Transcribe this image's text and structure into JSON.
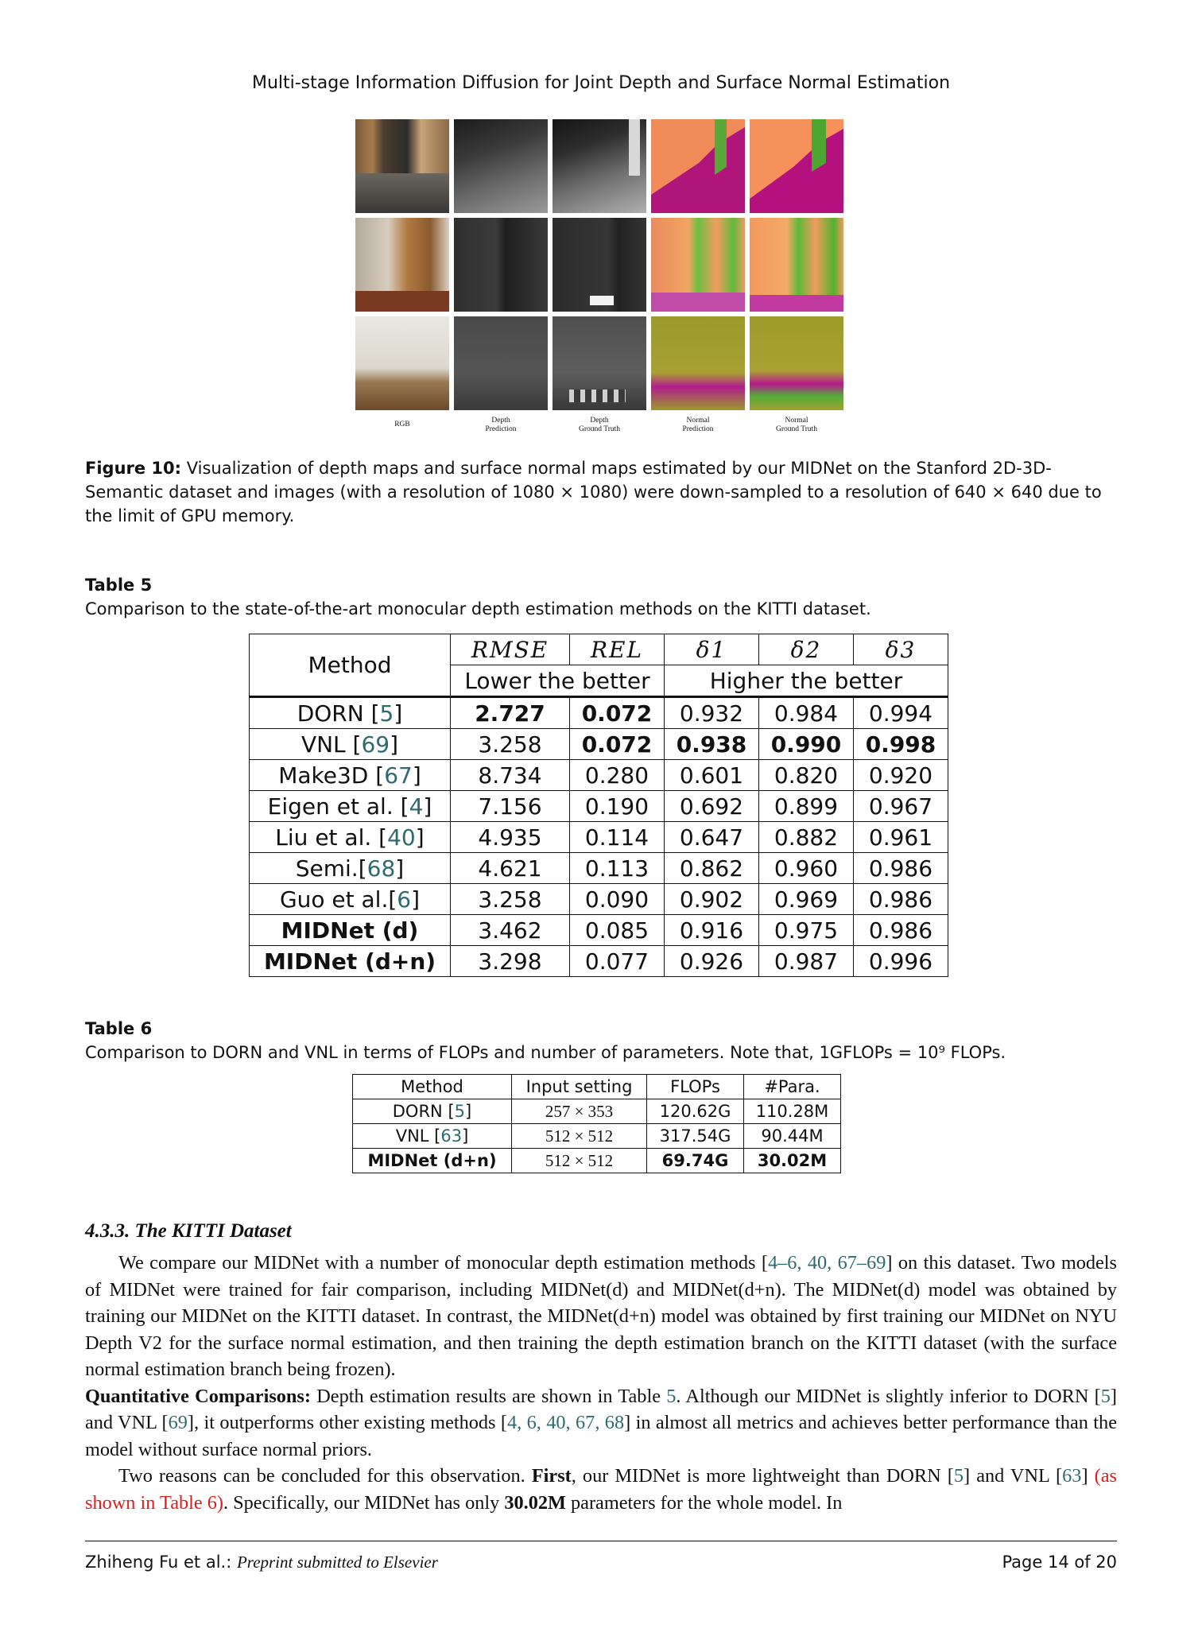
{
  "running_head": "Multi-stage Information Diffusion for Joint Depth and Surface Normal Estimation",
  "figure10": {
    "column_labels": [
      "RGB",
      "Depth\nPrediction",
      "Depth\nGround Truth",
      "Normal\nPrediction",
      "Normal\nGround Truth"
    ],
    "caption_label": "Figure 10:",
    "caption_text": "Visualization of depth maps and surface normal maps estimated by our MIDNet on the Stanford 2D-3D-Semantic dataset and images (with a resolution of 1080 × 1080) were down-sampled to a resolution of 640 × 640 due to the limit of GPU memory."
  },
  "table5": {
    "title": "Table 5",
    "caption": "Comparison to the state-of-the-art monocular depth estimation methods on the KITTI dataset.",
    "header": {
      "method": "Method",
      "rmse": "RMSE",
      "rel": "REL",
      "d1": "δ1",
      "d2": "δ2",
      "d3": "δ3",
      "lower": "Lower the better",
      "higher": "Higher the better"
    },
    "rows": [
      {
        "method": "DORN",
        "ref": "5",
        "sep": " ",
        "rmse": "2.727",
        "rel": "0.072",
        "d1": "0.932",
        "d2": "0.984",
        "d3": "0.994"
      },
      {
        "method": "VNL",
        "ref": "69",
        "sep": " ",
        "rmse": "3.258",
        "rel": "0.072",
        "d1": "0.938",
        "d2": "0.990",
        "d3": "0.998"
      },
      {
        "method": "Make3D",
        "ref": "67",
        "sep": " ",
        "rmse": "8.734",
        "rel": "0.280",
        "d1": "0.601",
        "d2": "0.820",
        "d3": "0.920"
      },
      {
        "method": "Eigen et al.",
        "ref": "4",
        "sep": " ",
        "rmse": "7.156",
        "rel": "0.190",
        "d1": "0.692",
        "d2": "0.899",
        "d3": "0.967"
      },
      {
        "method": "Liu et al.",
        "ref": "40",
        "sep": " ",
        "rmse": "4.935",
        "rel": "0.114",
        "d1": "0.647",
        "d2": "0.882",
        "d3": "0.961"
      },
      {
        "method": "Semi.",
        "ref": "68",
        "sep": "",
        "rmse": "4.621",
        "rel": "0.113",
        "d1": "0.862",
        "d2": "0.960",
        "d3": "0.986"
      },
      {
        "method": "Guo et al.",
        "ref": "6",
        "sep": "",
        "rmse": "3.258",
        "rel": "0.090",
        "d1": "0.902",
        "d2": "0.969",
        "d3": "0.986"
      },
      {
        "method": "MIDNet (d)",
        "ref": "",
        "sep": "",
        "rmse": "3.462",
        "rel": "0.085",
        "d1": "0.916",
        "d2": "0.975",
        "d3": "0.986"
      },
      {
        "method": "MIDNet (d+n)",
        "ref": "",
        "sep": "",
        "rmse": "3.298",
        "rel": "0.077",
        "d1": "0.926",
        "d2": "0.987",
        "d3": "0.996"
      }
    ]
  },
  "table6": {
    "title": "Table 6",
    "caption": "Comparison to DORN and VNL in terms of FLOPs and number of parameters. Note that, 1GFLOPs = 10⁹  FLOPs.",
    "header": {
      "method": "Method",
      "input": "Input setting",
      "flops": "FLOPs",
      "para": "#Para."
    },
    "rows": [
      {
        "method": "DORN",
        "ref": "5",
        "input": "257 × 353",
        "flops": "120.62G",
        "para": "110.28M"
      },
      {
        "method": "VNL",
        "ref": "63",
        "input": "512 × 512",
        "flops": "317.54G",
        "para": "90.44M"
      },
      {
        "method": "MIDNet (d+n)",
        "ref": "",
        "input": "512 × 512",
        "flops": "69.74G",
        "para": "30.02M"
      }
    ]
  },
  "section": {
    "heading": "4.3.3. The KITTI Dataset",
    "p1_a": "We compare our MIDNet with a number of monocular depth estimation methods [",
    "p1_refs": "4–6, 40, 67–69",
    "p1_b": "] on this dataset. Two models of MIDNet were trained for fair comparison, including MIDNet(d) and MIDNet(d+n). The MIDNet(d) model was obtained by training our MIDNet on the KITTI dataset. In contrast, the MIDNet(d+n) model was obtained by first training our MIDNet on NYU Depth V2 for the surface normal estimation, and then training the depth estimation branch on the KITTI dataset (with the surface normal estimation branch being frozen).",
    "p2_bold": "Quantitative Comparisons:",
    "p2_a": " Depth estimation results are shown in Table ",
    "p2_ref_table": "5",
    "p2_b": ". Although our MIDNet is slightly inferior to DORN [",
    "p2_ref_dorn": "5",
    "p2_c": "] and VNL [",
    "p2_ref_vnl": "69",
    "p2_d": "], it outperforms other existing methods [",
    "p2_refs": "4, 6, 40, 67, 68",
    "p2_e": "] in almost all metrics and achieves better performance than the model without surface normal priors.",
    "p3_a": "Two reasons can be concluded for this observation. ",
    "p3_bold1": "First",
    "p3_b": ", our MIDNet is more lightweight than DORN [",
    "p3_ref_dorn": "5",
    "p3_c": "] and VNL [",
    "p3_ref_vnl": "63",
    "p3_d": "] ",
    "p3_red": "(as shown in Table 6)",
    "p3_e": ".  Specifically, our MIDNet has only ",
    "p3_bold2": "30.02M",
    "p3_f": " parameters for the whole model.  In"
  },
  "footer": {
    "authors": "Zhiheng Fu et al.:",
    "venue": "Preprint submitted to Elsevier",
    "page": "Page 14 of 20"
  },
  "colors": {
    "ref": "#2f6a6f",
    "highlight_red": "#e21b1b"
  }
}
